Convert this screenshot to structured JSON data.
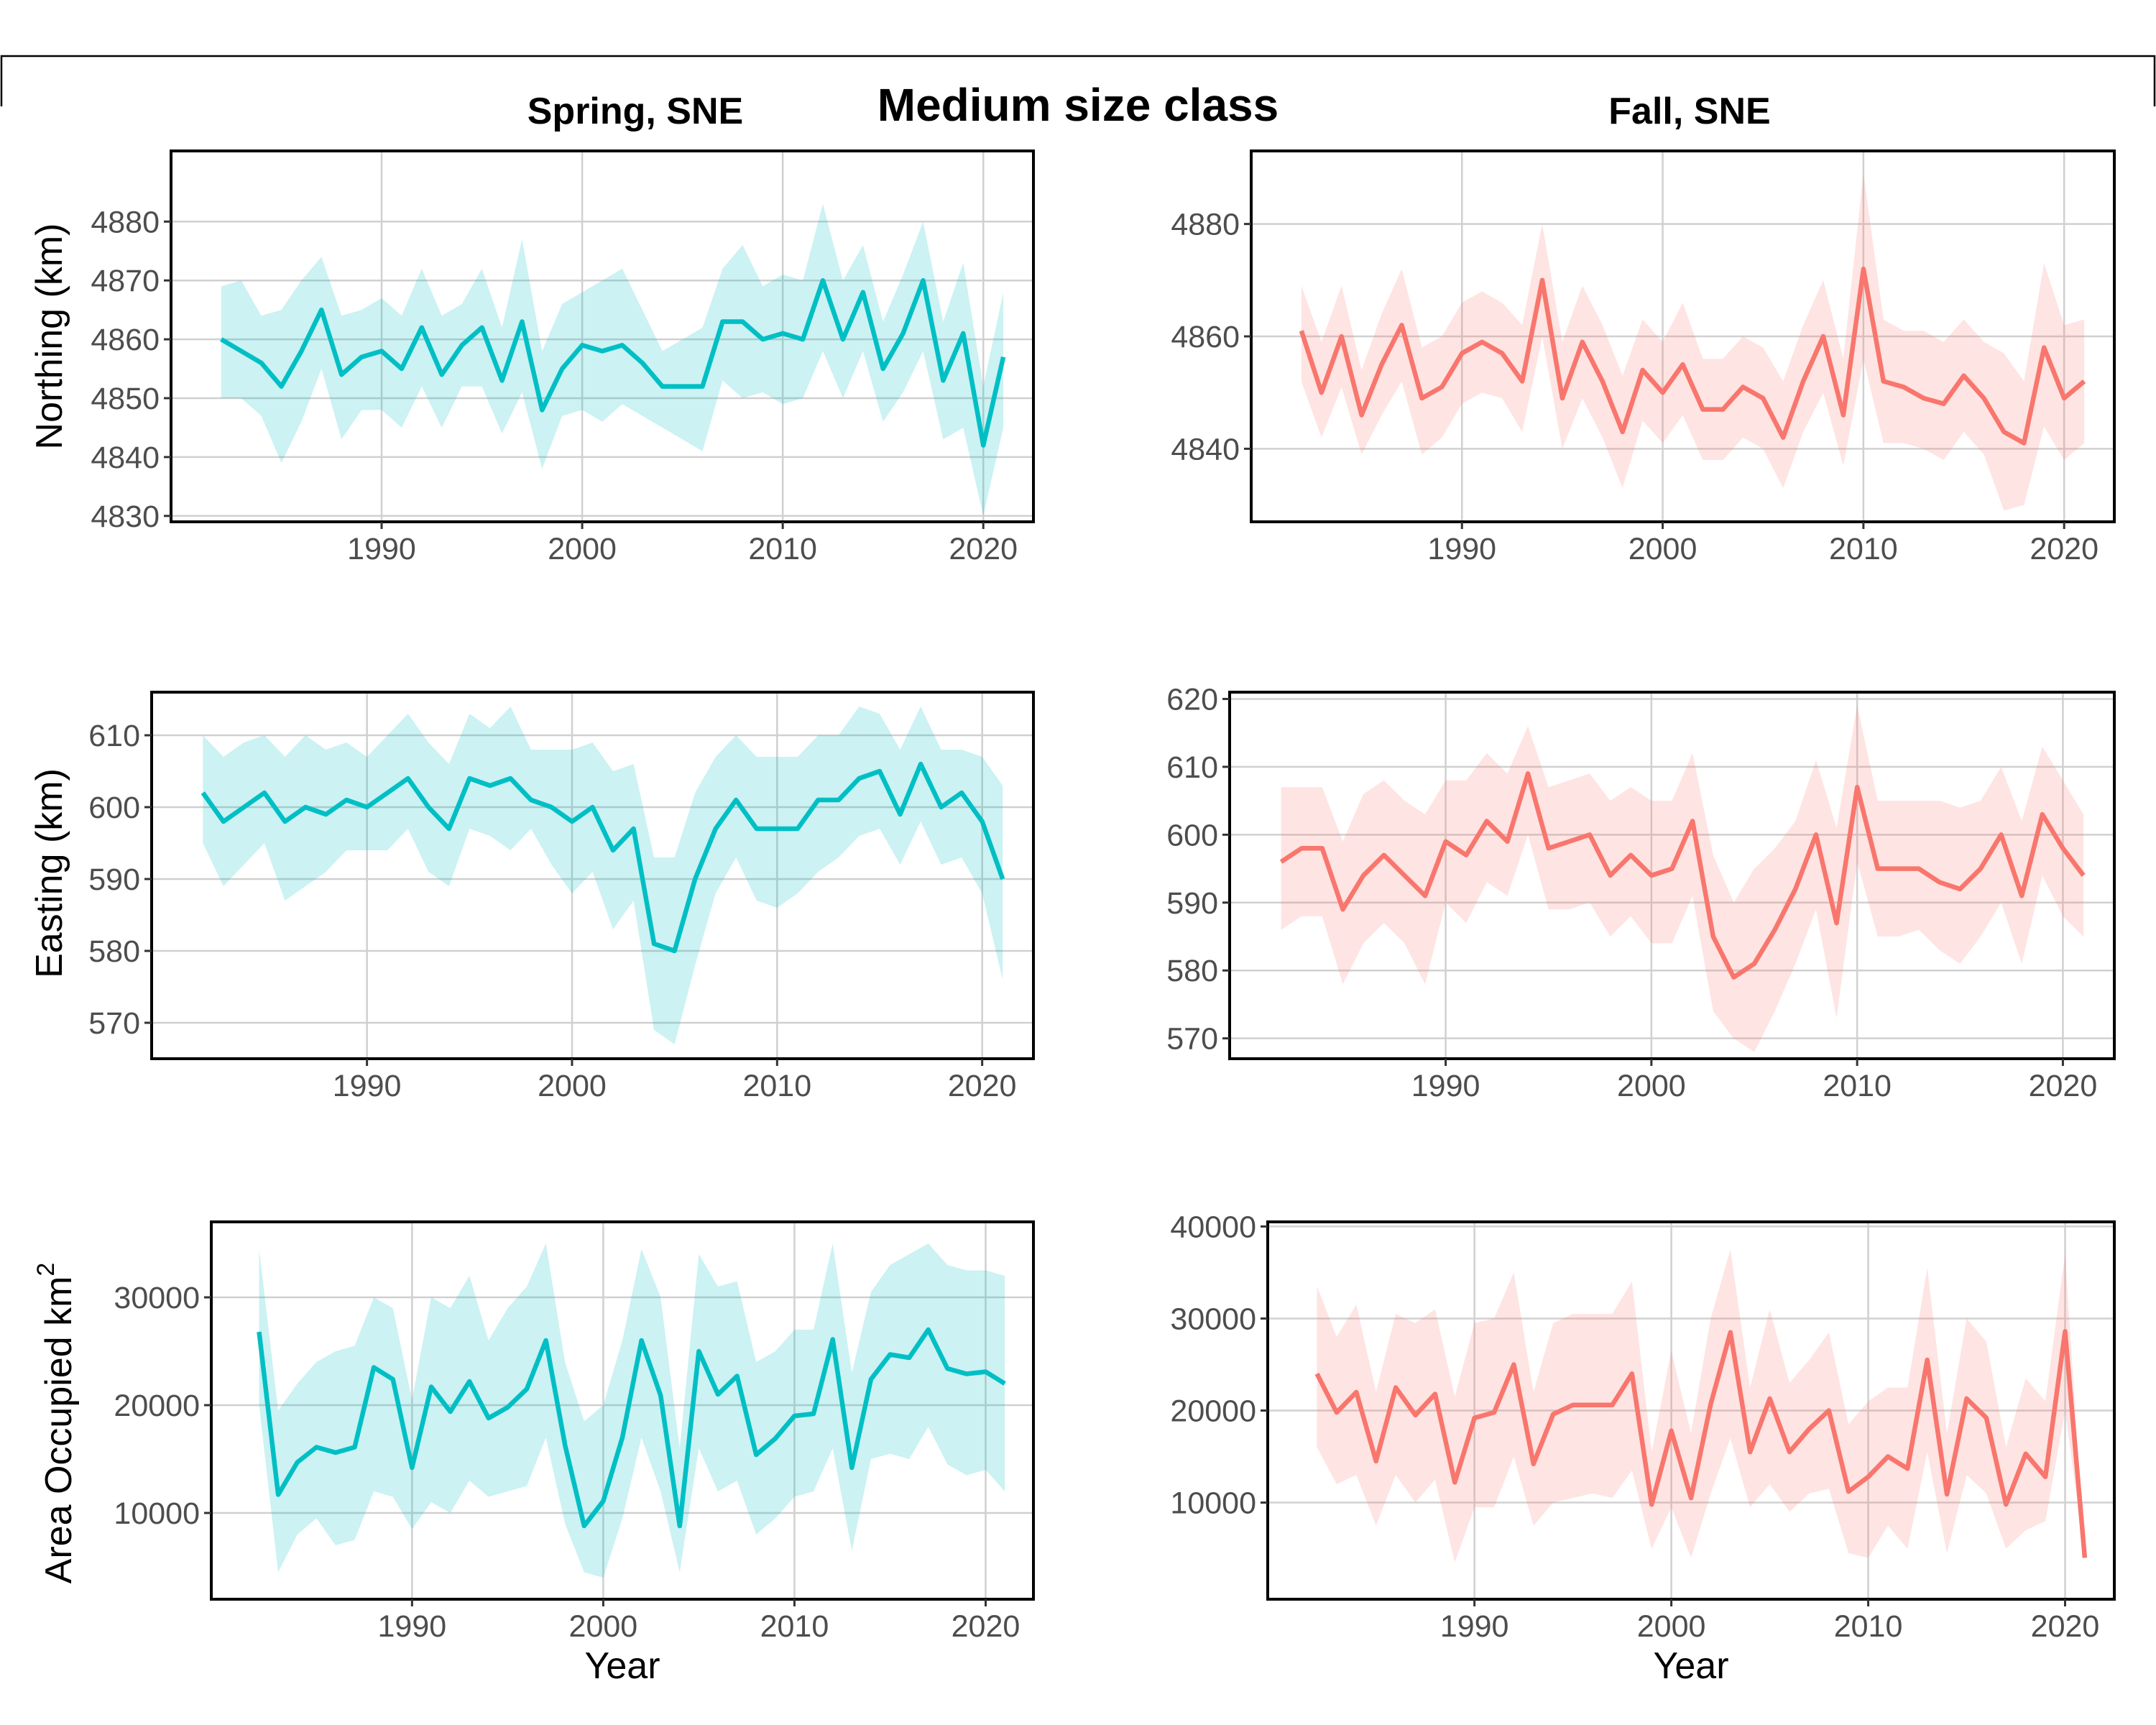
{
  "title": "Medium size class",
  "columns": [
    "Spring, SNE",
    "Fall, SNE"
  ],
  "colors": {
    "spring": "#00BFC4",
    "fall": "#F8766D",
    "grid": "#d0d0d0"
  },
  "row_labels": [
    "Northing (km)",
    "Easting (km)",
    "Area Occupied km"
  ],
  "area_superscript": "2",
  "xlabel": "Year",
  "chart_data": [
    {
      "type": "line",
      "panel": "spring-northing",
      "column": "Spring, SNE",
      "ylabel": "Northing (km)",
      "xlim": [
        1979.5,
        2022.5
      ],
      "ylim": [
        4829,
        4892
      ],
      "xticks": [
        1990,
        2000,
        2010,
        2020
      ],
      "yticks": [
        4830,
        4840,
        4850,
        4860,
        4870,
        4880
      ],
      "x": [
        1982,
        1983,
        1984,
        1985,
        1986,
        1987,
        1988,
        1989,
        1990,
        1991,
        1992,
        1993,
        1994,
        1995,
        1996,
        1997,
        1998,
        1999,
        2000,
        2001,
        2002,
        2003,
        2004,
        2005,
        2006,
        2007,
        2008,
        2009,
        2010,
        2011,
        2012,
        2013,
        2014,
        2015,
        2016,
        2017,
        2018,
        2019,
        2020,
        2021
      ],
      "y": [
        4860,
        4858,
        4856,
        4852,
        4858,
        4865,
        4854,
        4857,
        4858,
        4855,
        4862,
        4854,
        4859,
        4862,
        4853,
        4863,
        4848,
        4855,
        4859,
        4858,
        4859,
        4856,
        4852,
        4852,
        4852,
        4863,
        4863,
        4860,
        4861,
        4860,
        4870,
        4860,
        4868,
        4855,
        4861,
        4870,
        4853,
        4861,
        4842,
        4857
      ],
      "band_lower": [
        4850,
        4850,
        4847,
        4839,
        4846,
        4855,
        4843,
        4848,
        4848,
        4845,
        4852,
        4845,
        4852,
        4852,
        4844,
        4851,
        4838,
        4847,
        4848,
        4846,
        4849,
        4847,
        4845,
        4843,
        4841,
        4853,
        4850,
        4851,
        4849,
        4850,
        4858,
        4850,
        4858,
        4846,
        4851,
        4858,
        4843,
        4845,
        4830,
        4845
      ],
      "band_upper": [
        4869,
        4870,
        4864,
        4865,
        4870,
        4874,
        4864,
        4865,
        4867,
        4864,
        4872,
        4864,
        4866,
        4872,
        4862,
        4877,
        4858,
        4866,
        4868,
        4870,
        4872,
        4865,
        4858,
        4860,
        4862,
        4872,
        4876,
        4869,
        4871,
        4870,
        4883,
        4870,
        4876,
        4863,
        4871,
        4880,
        4863,
        4873,
        4852,
        4868
      ]
    },
    {
      "type": "line",
      "panel": "fall-northing",
      "column": "Fall, SNE",
      "ylabel": "",
      "xlim": [
        1979.5,
        2022.5
      ],
      "ylim": [
        4827,
        4893
      ],
      "xticks": [
        1990,
        2000,
        2010,
        2020
      ],
      "yticks": [
        4840,
        4860,
        4880
      ],
      "x": [
        1982,
        1983,
        1984,
        1985,
        1986,
        1987,
        1988,
        1989,
        1990,
        1991,
        1992,
        1993,
        1994,
        1995,
        1996,
        1997,
        1998,
        1999,
        2000,
        2001,
        2002,
        2003,
        2004,
        2005,
        2006,
        2007,
        2008,
        2009,
        2010,
        2011,
        2012,
        2013,
        2014,
        2015,
        2016,
        2017,
        2018,
        2019,
        2020,
        2021
      ],
      "y": [
        4861,
        4850,
        4860,
        4846,
        4855,
        4862,
        4849,
        4851,
        4857,
        4859,
        4857,
        4852,
        4870,
        4849,
        4859,
        4852,
        4843,
        4854,
        4850,
        4855,
        4847,
        4847,
        4851,
        4849,
        4842,
        4852,
        4860,
        4846,
        4872,
        4852,
        4851,
        4849,
        4848,
        4853,
        4849,
        4843,
        4841,
        4858,
        4849,
        4852
      ],
      "band_lower": [
        4852,
        4842,
        4851,
        4839,
        4846,
        4852,
        4839,
        4842,
        4848,
        4850,
        4849,
        4843,
        4860,
        4840,
        4849,
        4842,
        4833,
        4845,
        4841,
        4846,
        4838,
        4838,
        4842,
        4840,
        4833,
        4843,
        4850,
        4837,
        4856,
        4841,
        4841,
        4840,
        4838,
        4843,
        4839,
        4829,
        4830,
        4844,
        4838,
        4841
      ],
      "band_upper": [
        4869,
        4859,
        4869,
        4854,
        4864,
        4872,
        4858,
        4860,
        4866,
        4868,
        4866,
        4862,
        4880,
        4859,
        4869,
        4862,
        4853,
        4863,
        4859,
        4866,
        4856,
        4856,
        4860,
        4858,
        4852,
        4862,
        4870,
        4856,
        4889,
        4863,
        4861,
        4861,
        4859,
        4863,
        4859,
        4857,
        4852,
        4873,
        4862,
        4863
      ]
    },
    {
      "type": "line",
      "panel": "spring-easting",
      "column": "Spring, SNE",
      "ylabel": "Easting (km)",
      "xlim": [
        1979.5,
        2022.5
      ],
      "ylim": [
        565,
        616
      ],
      "xticks": [
        1990,
        2000,
        2010,
        2020
      ],
      "yticks": [
        570,
        580,
        590,
        600,
        610
      ],
      "x": [
        1982,
        1983,
        1984,
        1985,
        1986,
        1987,
        1988,
        1989,
        1990,
        1991,
        1992,
        1993,
        1994,
        1995,
        1996,
        1997,
        1998,
        1999,
        2000,
        2001,
        2002,
        2003,
        2004,
        2005,
        2006,
        2007,
        2008,
        2009,
        2010,
        2011,
        2012,
        2013,
        2014,
        2015,
        2016,
        2017,
        2018,
        2019,
        2020,
        2021
      ],
      "y": [
        602,
        598,
        600,
        602,
        598,
        600,
        599,
        601,
        600,
        602,
        604,
        600,
        597,
        604,
        603,
        604,
        601,
        600,
        598,
        600,
        594,
        597,
        581,
        580,
        590,
        597,
        601,
        597,
        597,
        597,
        601,
        601,
        604,
        605,
        599,
        606,
        600,
        602,
        598,
        590
      ],
      "band_lower": [
        595,
        589,
        592,
        595,
        587,
        589,
        591,
        594,
        594,
        594,
        597,
        591,
        589,
        597,
        596,
        594,
        597,
        592,
        588,
        591,
        583,
        587,
        569,
        567,
        578,
        588,
        593,
        587,
        586,
        588,
        591,
        593,
        596,
        597,
        592,
        598,
        592,
        593,
        588,
        576
      ],
      "band_upper": [
        610,
        607,
        609,
        610,
        607,
        610,
        608,
        609,
        607,
        610,
        613,
        609,
        606,
        613,
        611,
        614,
        608,
        608,
        608,
        609,
        605,
        606,
        593,
        593,
        602,
        607,
        610,
        607,
        607,
        607,
        610,
        610,
        614,
        613,
        608,
        614,
        608,
        608,
        607,
        603
      ]
    },
    {
      "type": "line",
      "panel": "fall-easting",
      "column": "Fall, SNE",
      "ylabel": "",
      "xlim": [
        1979.5,
        2022.5
      ],
      "ylim": [
        567,
        621
      ],
      "xticks": [
        1990,
        2000,
        2010,
        2020
      ],
      "yticks": [
        570,
        580,
        590,
        600,
        610,
        620
      ],
      "x": [
        1982,
        1983,
        1984,
        1985,
        1986,
        1987,
        1988,
        1989,
        1990,
        1991,
        1992,
        1993,
        1994,
        1995,
        1996,
        1997,
        1998,
        1999,
        2000,
        2001,
        2002,
        2003,
        2004,
        2005,
        2006,
        2007,
        2008,
        2009,
        2010,
        2011,
        2012,
        2013,
        2014,
        2015,
        2016,
        2017,
        2018,
        2019,
        2020,
        2021
      ],
      "y": [
        596,
        598,
        598,
        589,
        594,
        597,
        594,
        591,
        599,
        597,
        602,
        599,
        609,
        598,
        599,
        600,
        594,
        597,
        594,
        595,
        602,
        585,
        579,
        581,
        586,
        592,
        600,
        587,
        607,
        595,
        595,
        595,
        593,
        592,
        595,
        600,
        591,
        603,
        598,
        594
      ],
      "band_lower": [
        586,
        588,
        588,
        578,
        584,
        587,
        584,
        578,
        590,
        587,
        593,
        591,
        600,
        589,
        589,
        590,
        585,
        588,
        584,
        584,
        591,
        574,
        570,
        568,
        574,
        581,
        589,
        573,
        596,
        585,
        585,
        586,
        583,
        581,
        585,
        590,
        581,
        594,
        588,
        585
      ],
      "band_upper": [
        607,
        607,
        607,
        599,
        606,
        608,
        605,
        603,
        608,
        608,
        612,
        609,
        616,
        607,
        608,
        609,
        605,
        607,
        605,
        605,
        612,
        597,
        590,
        595,
        598,
        602,
        611,
        601,
        619,
        605,
        605,
        605,
        605,
        604,
        605,
        610,
        602,
        613,
        608,
        603
      ]
    },
    {
      "type": "line",
      "panel": "spring-area",
      "column": "Spring, SNE",
      "ylabel": "Area Occupied km 2",
      "xlim": [
        1979.5,
        2022.5
      ],
      "ylim": [
        2000,
        37000
      ],
      "xticks": [
        1990,
        2000,
        2010,
        2020
      ],
      "yticks": [
        10000,
        20000,
        30000
      ],
      "x": [
        1982,
        1983,
        1984,
        1985,
        1986,
        1987,
        1988,
        1989,
        1990,
        1991,
        1992,
        1993,
        1994,
        1995,
        1996,
        1997,
        1998,
        1999,
        2000,
        2001,
        2002,
        2003,
        2004,
        2005,
        2006,
        2007,
        2008,
        2009,
        2010,
        2011,
        2012,
        2013,
        2014,
        2015,
        2016,
        2017,
        2018,
        2019,
        2020,
        2021
      ],
      "y": [
        26800,
        11700,
        14700,
        16100,
        15600,
        16100,
        23500,
        22400,
        14200,
        21700,
        19400,
        22200,
        18800,
        19800,
        21500,
        26000,
        16300,
        8800,
        11100,
        17000,
        26000,
        20900,
        8800,
        25000,
        21000,
        22700,
        15400,
        16900,
        19000,
        19200,
        26100,
        14200,
        22400,
        24700,
        24400,
        27000,
        23400,
        22900,
        23100,
        22000
      ],
      "band_lower": [
        20000,
        4500,
        8000,
        9500,
        7000,
        7500,
        12000,
        11500,
        8500,
        11000,
        10000,
        13000,
        11500,
        12000,
        12500,
        17000,
        9000,
        4500,
        4000,
        9500,
        17000,
        12000,
        4500,
        16000,
        12000,
        13000,
        8000,
        9500,
        11500,
        12000,
        16000,
        6500,
        15000,
        15500,
        15000,
        18000,
        14500,
        13500,
        14000,
        12000
      ],
      "band_upper": [
        34500,
        19500,
        22000,
        24000,
        25000,
        25500,
        30000,
        29000,
        20500,
        30000,
        29000,
        32000,
        26000,
        29000,
        31000,
        35000,
        24000,
        18500,
        20000,
        26000,
        34500,
        30000,
        16000,
        34000,
        31000,
        31500,
        24000,
        25000,
        27000,
        27000,
        35000,
        23000,
        30500,
        33000,
        34000,
        35000,
        33000,
        32500,
        32500,
        32000
      ]
    },
    {
      "type": "line",
      "panel": "fall-area",
      "column": "Fall, SNE",
      "ylabel": "",
      "xlim": [
        1979.5,
        2022.5
      ],
      "ylim": [
        -500,
        40500
      ],
      "xticks": [
        1990,
        2000,
        2010,
        2020
      ],
      "yticks": [
        10000,
        20000,
        30000,
        40000
      ],
      "x": [
        1982,
        1983,
        1984,
        1985,
        1986,
        1987,
        1988,
        1989,
        1990,
        1991,
        1992,
        1993,
        1994,
        1995,
        1996,
        1997,
        1998,
        1999,
        2000,
        2001,
        2002,
        2003,
        2004,
        2005,
        2006,
        2007,
        2008,
        2009,
        2010,
        2011,
        2012,
        2013,
        2014,
        2015,
        2016,
        2017,
        2018,
        2019,
        2020,
        2021
      ],
      "y": [
        24000,
        19800,
        22000,
        14500,
        22500,
        19500,
        21800,
        12200,
        19200,
        19800,
        25000,
        14200,
        19600,
        20600,
        20600,
        20600,
        24000,
        9800,
        17800,
        10500,
        20700,
        28500,
        15500,
        21300,
        15500,
        18000,
        20000,
        11200,
        12800,
        15000,
        13700,
        25500,
        10900,
        21300,
        19200,
        9800,
        15300,
        12800,
        28600,
        4000
      ],
      "band_lower": [
        16000,
        12000,
        13000,
        7500,
        13000,
        10000,
        12500,
        3500,
        9500,
        9500,
        15000,
        7500,
        10000,
        10500,
        11000,
        10500,
        13500,
        5000,
        9500,
        4000,
        11000,
        17000,
        9500,
        12000,
        9000,
        11000,
        11500,
        4500,
        4000,
        7500,
        5000,
        15500,
        4500,
        13000,
        11000,
        5000,
        7000,
        8000,
        20000,
        4000
      ],
      "band_upper": [
        33500,
        28000,
        31500,
        22000,
        30500,
        29500,
        31000,
        21500,
        29500,
        30000,
        35000,
        22000,
        29500,
        30500,
        30500,
        30500,
        34000,
        15500,
        26500,
        17500,
        30000,
        37500,
        22500,
        31000,
        23000,
        25500,
        28500,
        18500,
        21000,
        22500,
        22500,
        35500,
        17500,
        30000,
        27500,
        16000,
        23500,
        21000,
        37000,
        4000
      ]
    }
  ]
}
